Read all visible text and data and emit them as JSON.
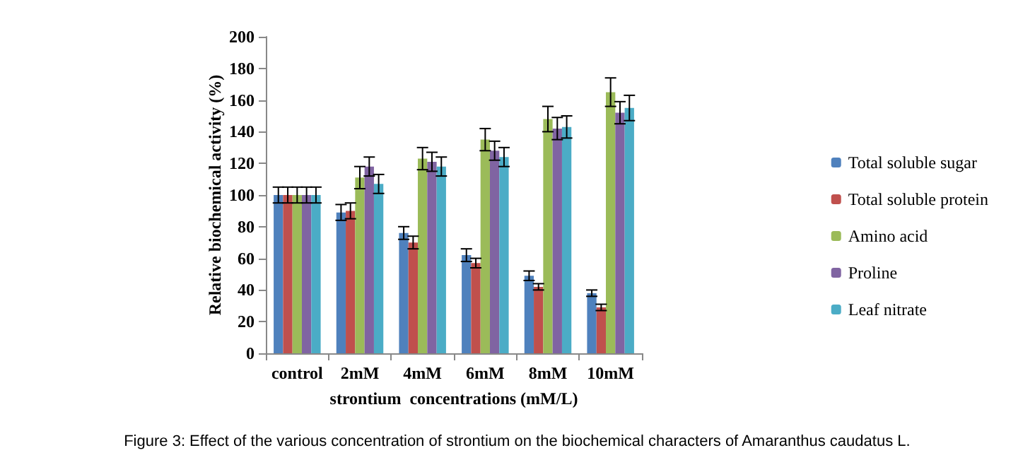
{
  "chart_data": {
    "type": "bar",
    "xlabel": "strontium  concentrations (mM/L)",
    "ylabel": "Relative biochemical activity (%)",
    "categories": [
      "control",
      "2mM",
      "4mM",
      "6mM",
      "8mM",
      "10mM"
    ],
    "series": [
      {
        "name": "Total soluble sugar",
        "color": "#4f81bd",
        "values": [
          100,
          89,
          76,
          62,
          49,
          38
        ],
        "errors": [
          5,
          5,
          4,
          4,
          3,
          2
        ]
      },
      {
        "name": "Total soluble protein",
        "color": "#c0504d",
        "values": [
          100,
          90,
          70,
          57,
          42,
          29
        ],
        "errors": [
          5,
          5,
          4,
          3,
          2,
          2
        ]
      },
      {
        "name": "Amino acid",
        "color": "#9bbb59",
        "values": [
          100,
          111,
          123,
          135,
          148,
          165
        ],
        "errors": [
          5,
          7,
          7,
          7,
          8,
          9
        ]
      },
      {
        "name": "Proline",
        "color": "#8064a2",
        "values": [
          100,
          118,
          121,
          128,
          142,
          152
        ],
        "errors": [
          5,
          6,
          6,
          6,
          7,
          7
        ]
      },
      {
        "name": "Leaf nitrate",
        "color": "#4bacc6",
        "values": [
          100,
          107,
          118,
          124,
          143,
          155
        ],
        "errors": [
          5,
          6,
          6,
          6,
          7,
          8
        ]
      }
    ],
    "ylim": [
      0,
      200
    ],
    "yticks": [
      0,
      20,
      40,
      60,
      80,
      100,
      120,
      140,
      160,
      180,
      200
    ],
    "grid": false,
    "legend": "right",
    "annotations": [
      "Figure 3: Effect of the various concentration of strontium on the biochemical characters of Amaranthus caudatus L."
    ]
  }
}
